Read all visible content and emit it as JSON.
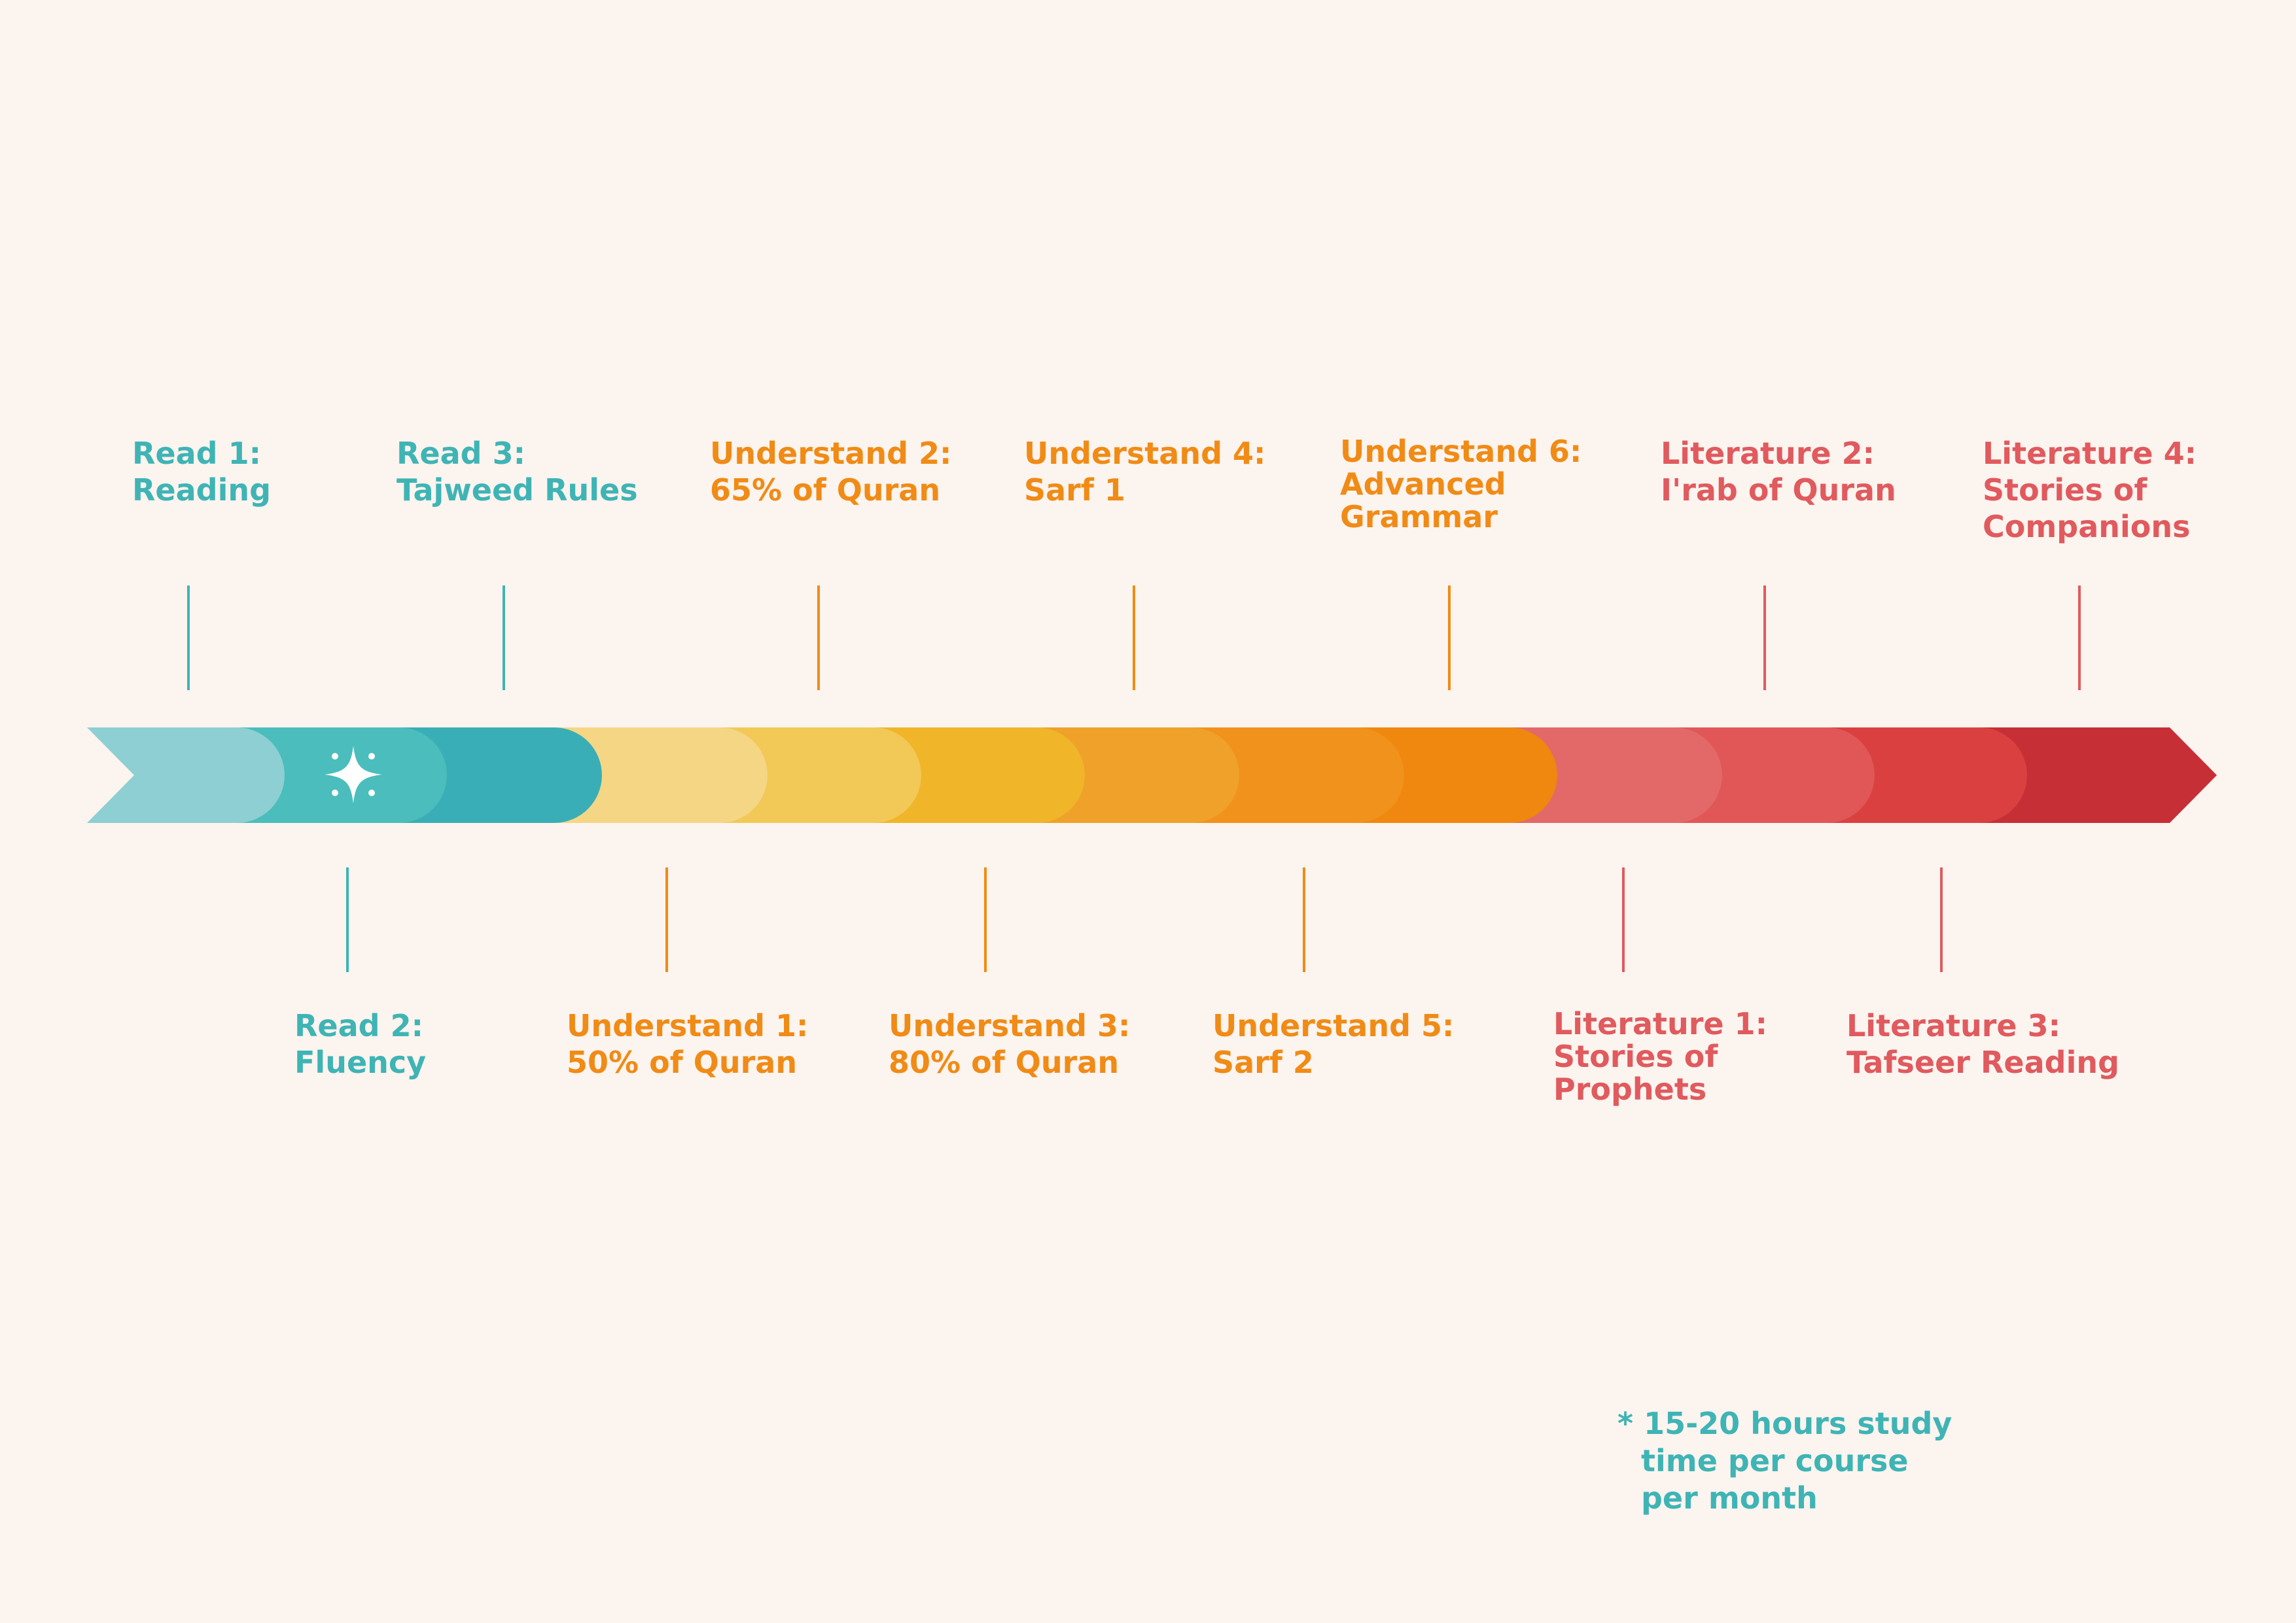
{
  "colors": {
    "background": "#fcf4ef",
    "teal_text": "#3fb4b5",
    "orange_text": "#f08b16",
    "red_text": "#e05a5e",
    "segments": [
      "#8dcfd2",
      "#4bbdbd",
      "#3aaeb6",
      "#f4d685",
      "#f2c957",
      "#f0b529",
      "#efa129",
      "#f1921c",
      "#f0870e",
      "#e36969",
      "#e15757",
      "#db4040",
      "#c72f36"
    ]
  },
  "icons": {
    "start_icon": "sparkle-star-icon"
  },
  "milestones_top": [
    {
      "title": "Read 1:",
      "subtitle": [
        "Reading"
      ],
      "color": "teal"
    },
    {
      "title": "Read 3:",
      "subtitle": [
        "Tajweed Rules"
      ],
      "color": "teal"
    },
    {
      "title": "Understand 2:",
      "subtitle": [
        "65% of Quran"
      ],
      "color": "orange"
    },
    {
      "title": "Understand 4:",
      "subtitle": [
        "Sarf 1"
      ],
      "color": "orange"
    },
    {
      "title": "Understand 6:",
      "subtitle": [
        "Advanced",
        "Grammar"
      ],
      "color": "orange"
    },
    {
      "title": "Literature 2:",
      "subtitle": [
        "I'rab of Quran"
      ],
      "color": "red"
    },
    {
      "title": "Literature 4:",
      "subtitle": [
        "Stories of",
        "Companions"
      ],
      "color": "red"
    }
  ],
  "milestones_bottom": [
    {
      "title": "Read 2:",
      "subtitle": [
        "Fluency"
      ],
      "color": "teal"
    },
    {
      "title": "Understand 1:",
      "subtitle": [
        "50% of Quran"
      ],
      "color": "orange"
    },
    {
      "title": "Understand 3:",
      "subtitle": [
        "80% of Quran"
      ],
      "color": "orange"
    },
    {
      "title": "Understand 5:",
      "subtitle": [
        "Sarf 2"
      ],
      "color": "orange"
    },
    {
      "title": "Literature 1:",
      "subtitle": [
        "Stories of",
        "Prophets"
      ],
      "color": "red"
    },
    {
      "title": "Literature 3:",
      "subtitle": [
        "Tafseer Reading"
      ],
      "color": "red"
    }
  ],
  "footnote": {
    "line1": "* 15-20 hours study",
    "line2": "time per course",
    "line3": "per month"
  }
}
